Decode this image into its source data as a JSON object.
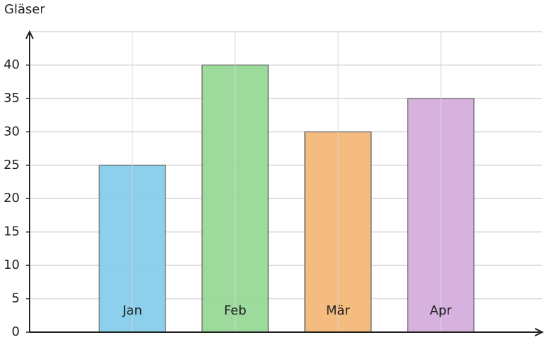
{
  "chart_data": {
    "type": "bar",
    "y_label": "Gläser",
    "categories": [
      "Jan",
      "Feb",
      "Mär",
      "Apr"
    ],
    "values": [
      25,
      40,
      30,
      35
    ],
    "colors": [
      "#87ceeb",
      "#98d998",
      "#f4b878",
      "#d6aedc"
    ],
    "ylim": [
      0,
      45
    ],
    "yticks": [
      0,
      5,
      10,
      15,
      20,
      25,
      30,
      35,
      40
    ],
    "grid": true
  }
}
